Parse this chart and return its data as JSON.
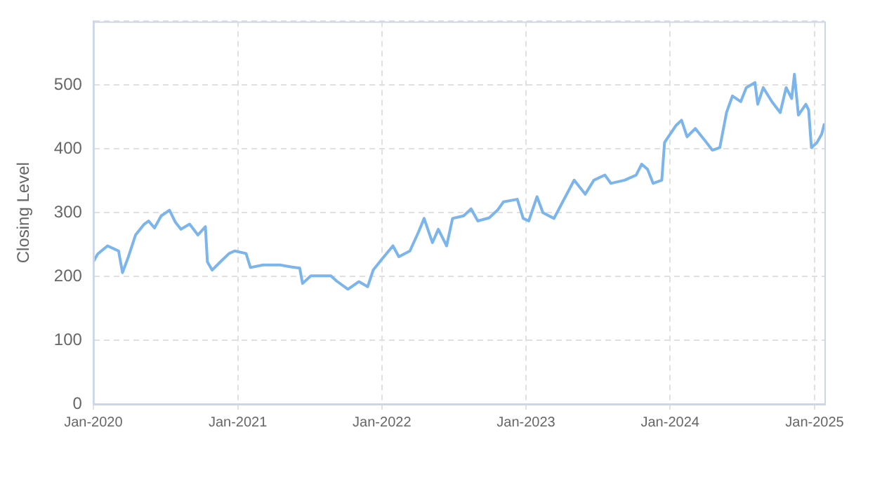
{
  "chart_data": {
    "type": "line",
    "ylabel": "Closing Level",
    "color": "#7cb5ec",
    "marker": "none",
    "line_style": "solid",
    "grid": true,
    "legend": false,
    "xlim": [
      "2020-01-01",
      "2025-01-26"
    ],
    "ylim": [
      0,
      600
    ],
    "xticks": [
      {
        "value": "2020-01-01",
        "label": "Jan-2020"
      },
      {
        "value": "2021-01-01",
        "label": "Jan-2021"
      },
      {
        "value": "2022-01-01",
        "label": "Jan-2022"
      },
      {
        "value": "2023-01-01",
        "label": "Jan-2023"
      },
      {
        "value": "2024-01-01",
        "label": "Jan-2024"
      },
      {
        "value": "2025-01-01",
        "label": "Jan-2025"
      }
    ],
    "yticks": [
      0,
      100,
      200,
      300,
      400,
      500,
      {
        "value": 600,
        "label": null
      }
    ],
    "x": [
      "2020-01-01",
      "2020-01-12",
      "2020-02-06",
      "2020-02-20",
      "2020-03-05",
      "2020-03-15",
      "2020-03-30",
      "2020-04-17",
      "2020-05-09",
      "2020-05-20",
      "2020-06-04",
      "2020-06-21",
      "2020-07-12",
      "2020-07-27",
      "2020-08-10",
      "2020-09-01",
      "2020-09-22",
      "2020-10-11",
      "2020-10-16",
      "2020-10-28",
      "2020-11-18",
      "2020-12-10",
      "2020-12-24",
      "2021-01-22",
      "2021-02-02",
      "2021-03-06",
      "2021-04-18",
      "2021-05-16",
      "2021-06-07",
      "2021-06-14",
      "2021-07-05",
      "2021-08-25",
      "2021-09-08",
      "2021-10-07",
      "2021-11-04",
      "2021-11-26",
      "2021-12-10",
      "2022-01-01",
      "2022-01-29",
      "2022-02-13",
      "2022-03-13",
      "2022-04-04",
      "2022-04-18",
      "2022-05-09",
      "2022-05-24",
      "2022-06-14",
      "2022-06-29",
      "2022-07-27",
      "2022-08-15",
      "2022-09-01",
      "2022-09-30",
      "2022-10-21",
      "2022-11-05",
      "2022-12-10",
      "2022-12-25",
      "2023-01-08",
      "2023-01-29",
      "2023-02-13",
      "2023-03-13",
      "2023-04-04",
      "2023-05-03",
      "2023-05-31",
      "2023-06-22",
      "2023-07-20",
      "2023-08-04",
      "2023-09-08",
      "2023-10-07",
      "2023-10-21",
      "2023-11-05",
      "2023-11-19",
      "2023-12-11",
      "2023-12-18",
      "2024-01-15",
      "2024-01-30",
      "2024-02-13",
      "2024-03-05",
      "2024-03-27",
      "2024-04-17",
      "2024-05-06",
      "2024-05-23",
      "2024-06-07",
      "2024-06-28",
      "2024-07-12",
      "2024-08-03",
      "2024-08-10",
      "2024-08-24",
      "2024-09-15",
      "2024-10-06",
      "2024-10-21",
      "2024-11-04",
      "2024-11-11",
      "2024-11-21",
      "2024-12-10",
      "2024-12-17",
      "2024-12-24",
      "2025-01-07",
      "2025-01-19",
      "2025-01-26"
    ],
    "values": [
      223,
      235,
      248,
      244,
      240,
      206,
      231,
      265,
      282,
      287,
      276,
      295,
      304,
      285,
      274,
      282,
      265,
      278,
      223,
      210,
      223,
      236,
      240,
      236,
      214,
      218,
      218,
      215,
      213,
      189,
      201,
      201,
      193,
      180,
      192,
      184,
      210,
      227,
      248,
      231,
      240,
      270,
      291,
      253,
      274,
      248,
      291,
      295,
      306,
      287,
      292,
      304,
      317,
      321,
      291,
      287,
      325,
      300,
      291,
      317,
      351,
      329,
      351,
      359,
      346,
      351,
      359,
      376,
      368,
      346,
      351,
      410,
      436,
      445,
      419,
      432,
      415,
      398,
      402,
      457,
      483,
      474,
      496,
      504,
      470,
      496,
      474,
      457,
      496,
      479,
      517,
      453,
      470,
      461,
      402,
      410,
      423,
      440
    ]
  }
}
